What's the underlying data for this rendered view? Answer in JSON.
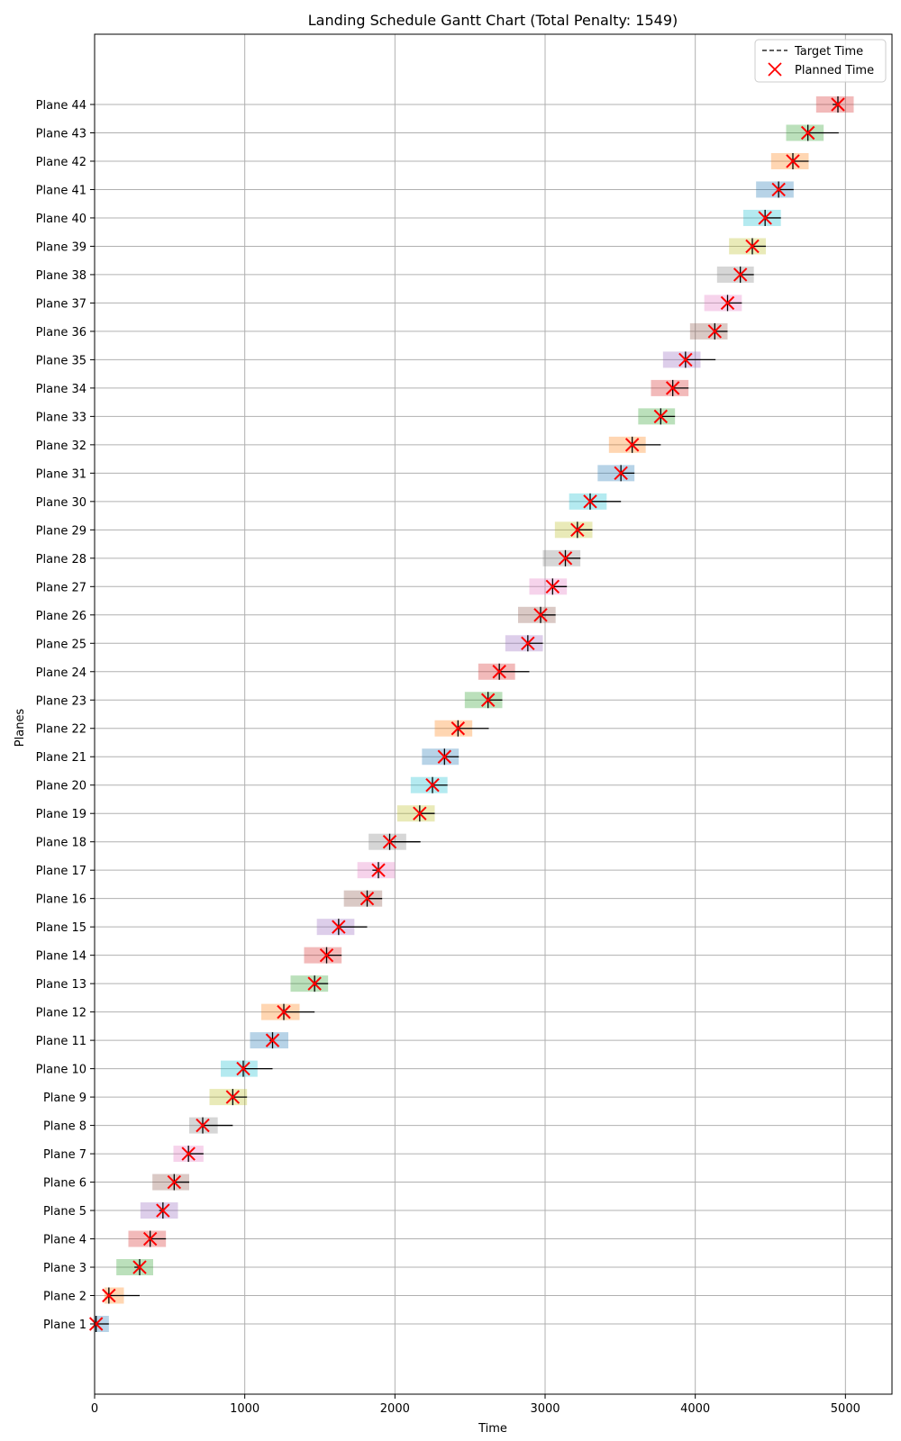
{
  "chart_data": {
    "type": "gantt",
    "title": "Landing Schedule Gantt Chart (Total Penalty: 1549)",
    "xlabel": "Time",
    "ylabel": "Planes",
    "xlim": [
      0,
      5310
    ],
    "x_ticks": [
      0,
      1000,
      2000,
      3000,
      4000,
      5000
    ],
    "grid": true,
    "legend": {
      "position": "top-right",
      "entries": [
        "Target Time",
        "Planned Time"
      ]
    },
    "colors": {
      "target_line": "#000000",
      "planned_marker": "#ff0000",
      "bar_palette": [
        "#1f77b4",
        "#ff7f0e",
        "#2ca02c",
        "#d62728",
        "#9467bd",
        "#8c564b",
        "#e377c2",
        "#7f7f7f",
        "#bcbd22",
        "#17becf"
      ]
    },
    "planes": [
      {
        "label": "Plane 1",
        "window_start": 0,
        "window_end": 95,
        "target": 95,
        "planned": 10
      },
      {
        "label": "Plane 2",
        "window_start": 65,
        "window_end": 195,
        "target": 300,
        "planned": 95
      },
      {
        "label": "Plane 3",
        "window_start": 145,
        "window_end": 390,
        "target": 265,
        "planned": 300
      },
      {
        "label": "Plane 4",
        "window_start": 225,
        "window_end": 475,
        "target": 475,
        "planned": 370
      },
      {
        "label": "Plane 5",
        "window_start": 305,
        "window_end": 555,
        "target": 430,
        "planned": 455
      },
      {
        "label": "Plane 6",
        "window_start": 385,
        "window_end": 630,
        "target": 630,
        "planned": 530
      },
      {
        "label": "Plane 7",
        "window_start": 525,
        "window_end": 725,
        "target": 725,
        "planned": 625
      },
      {
        "label": "Plane 8",
        "window_start": 630,
        "window_end": 820,
        "target": 920,
        "planned": 720
      },
      {
        "label": "Plane 9",
        "window_start": 765,
        "window_end": 1015,
        "target": 1015,
        "planned": 920
      },
      {
        "label": "Plane 10",
        "window_start": 840,
        "window_end": 1085,
        "target": 1185,
        "planned": 990
      },
      {
        "label": "Plane 11",
        "window_start": 1035,
        "window_end": 1290,
        "target": 1165,
        "planned": 1185
      },
      {
        "label": "Plane 12",
        "window_start": 1110,
        "window_end": 1365,
        "target": 1465,
        "planned": 1260
      },
      {
        "label": "Plane 13",
        "window_start": 1305,
        "window_end": 1555,
        "target": 1555,
        "planned": 1465
      },
      {
        "label": "Plane 14",
        "window_start": 1395,
        "window_end": 1645,
        "target": 1645,
        "planned": 1545
      },
      {
        "label": "Plane 15",
        "window_start": 1480,
        "window_end": 1730,
        "target": 1815,
        "planned": 1625
      },
      {
        "label": "Plane 16",
        "window_start": 1660,
        "window_end": 1915,
        "target": 1915,
        "planned": 1815
      },
      {
        "label": "Plane 17",
        "window_start": 1750,
        "window_end": 2000,
        "target": 1850,
        "planned": 1890
      },
      {
        "label": "Plane 18",
        "window_start": 1825,
        "window_end": 2075,
        "target": 2170,
        "planned": 1965
      },
      {
        "label": "Plane 19",
        "window_start": 2015,
        "window_end": 2265,
        "target": 2265,
        "planned": 2165
      },
      {
        "label": "Plane 20",
        "window_start": 2105,
        "window_end": 2350,
        "target": 2350,
        "planned": 2250
      },
      {
        "label": "Plane 21",
        "window_start": 2180,
        "window_end": 2425,
        "target": 2425,
        "planned": 2330
      },
      {
        "label": "Plane 22",
        "window_start": 2265,
        "window_end": 2515,
        "target": 2625,
        "planned": 2420
      },
      {
        "label": "Plane 23",
        "window_start": 2465,
        "window_end": 2715,
        "target": 2715,
        "planned": 2620
      },
      {
        "label": "Plane 24",
        "window_start": 2555,
        "window_end": 2800,
        "target": 2895,
        "planned": 2695
      },
      {
        "label": "Plane 25",
        "window_start": 2735,
        "window_end": 2985,
        "target": 2985,
        "planned": 2885
      },
      {
        "label": "Plane 26",
        "window_start": 2820,
        "window_end": 3070,
        "target": 3070,
        "planned": 2970
      },
      {
        "label": "Plane 27",
        "window_start": 2895,
        "window_end": 3145,
        "target": 3145,
        "planned": 3050
      },
      {
        "label": "Plane 28",
        "window_start": 2985,
        "window_end": 3235,
        "target": 3235,
        "planned": 3135
      },
      {
        "label": "Plane 29",
        "window_start": 3065,
        "window_end": 3315,
        "target": 3315,
        "planned": 3215
      },
      {
        "label": "Plane 30",
        "window_start": 3160,
        "window_end": 3410,
        "target": 3505,
        "planned": 3300
      },
      {
        "label": "Plane 31",
        "window_start": 3350,
        "window_end": 3595,
        "target": 3595,
        "planned": 3505
      },
      {
        "label": "Plane 32",
        "window_start": 3425,
        "window_end": 3670,
        "target": 3770,
        "planned": 3580
      },
      {
        "label": "Plane 33",
        "window_start": 3620,
        "window_end": 3865,
        "target": 3865,
        "planned": 3770
      },
      {
        "label": "Plane 34",
        "window_start": 3705,
        "window_end": 3955,
        "target": 3955,
        "planned": 3850
      },
      {
        "label": "Plane 35",
        "window_start": 3785,
        "window_end": 4035,
        "target": 4135,
        "planned": 3935
      },
      {
        "label": "Plane 36",
        "window_start": 3965,
        "window_end": 4215,
        "target": 4215,
        "planned": 4130
      },
      {
        "label": "Plane 37",
        "window_start": 4060,
        "window_end": 4310,
        "target": 4310,
        "planned": 4215
      },
      {
        "label": "Plane 38",
        "window_start": 4145,
        "window_end": 4390,
        "target": 4390,
        "planned": 4300
      },
      {
        "label": "Plane 39",
        "window_start": 4225,
        "window_end": 4470,
        "target": 4470,
        "planned": 4380
      },
      {
        "label": "Plane 40",
        "window_start": 4320,
        "window_end": 4570,
        "target": 4570,
        "planned": 4465
      },
      {
        "label": "Plane 41",
        "window_start": 4405,
        "window_end": 4655,
        "target": 4655,
        "planned": 4555
      },
      {
        "label": "Plane 42",
        "window_start": 4505,
        "window_end": 4755,
        "target": 4755,
        "planned": 4650
      },
      {
        "label": "Plane 43",
        "window_start": 4605,
        "window_end": 4855,
        "target": 4955,
        "planned": 4750
      },
      {
        "label": "Plane 44",
        "window_start": 4805,
        "window_end": 5055,
        "target": 4915,
        "planned": 4950
      }
    ]
  }
}
